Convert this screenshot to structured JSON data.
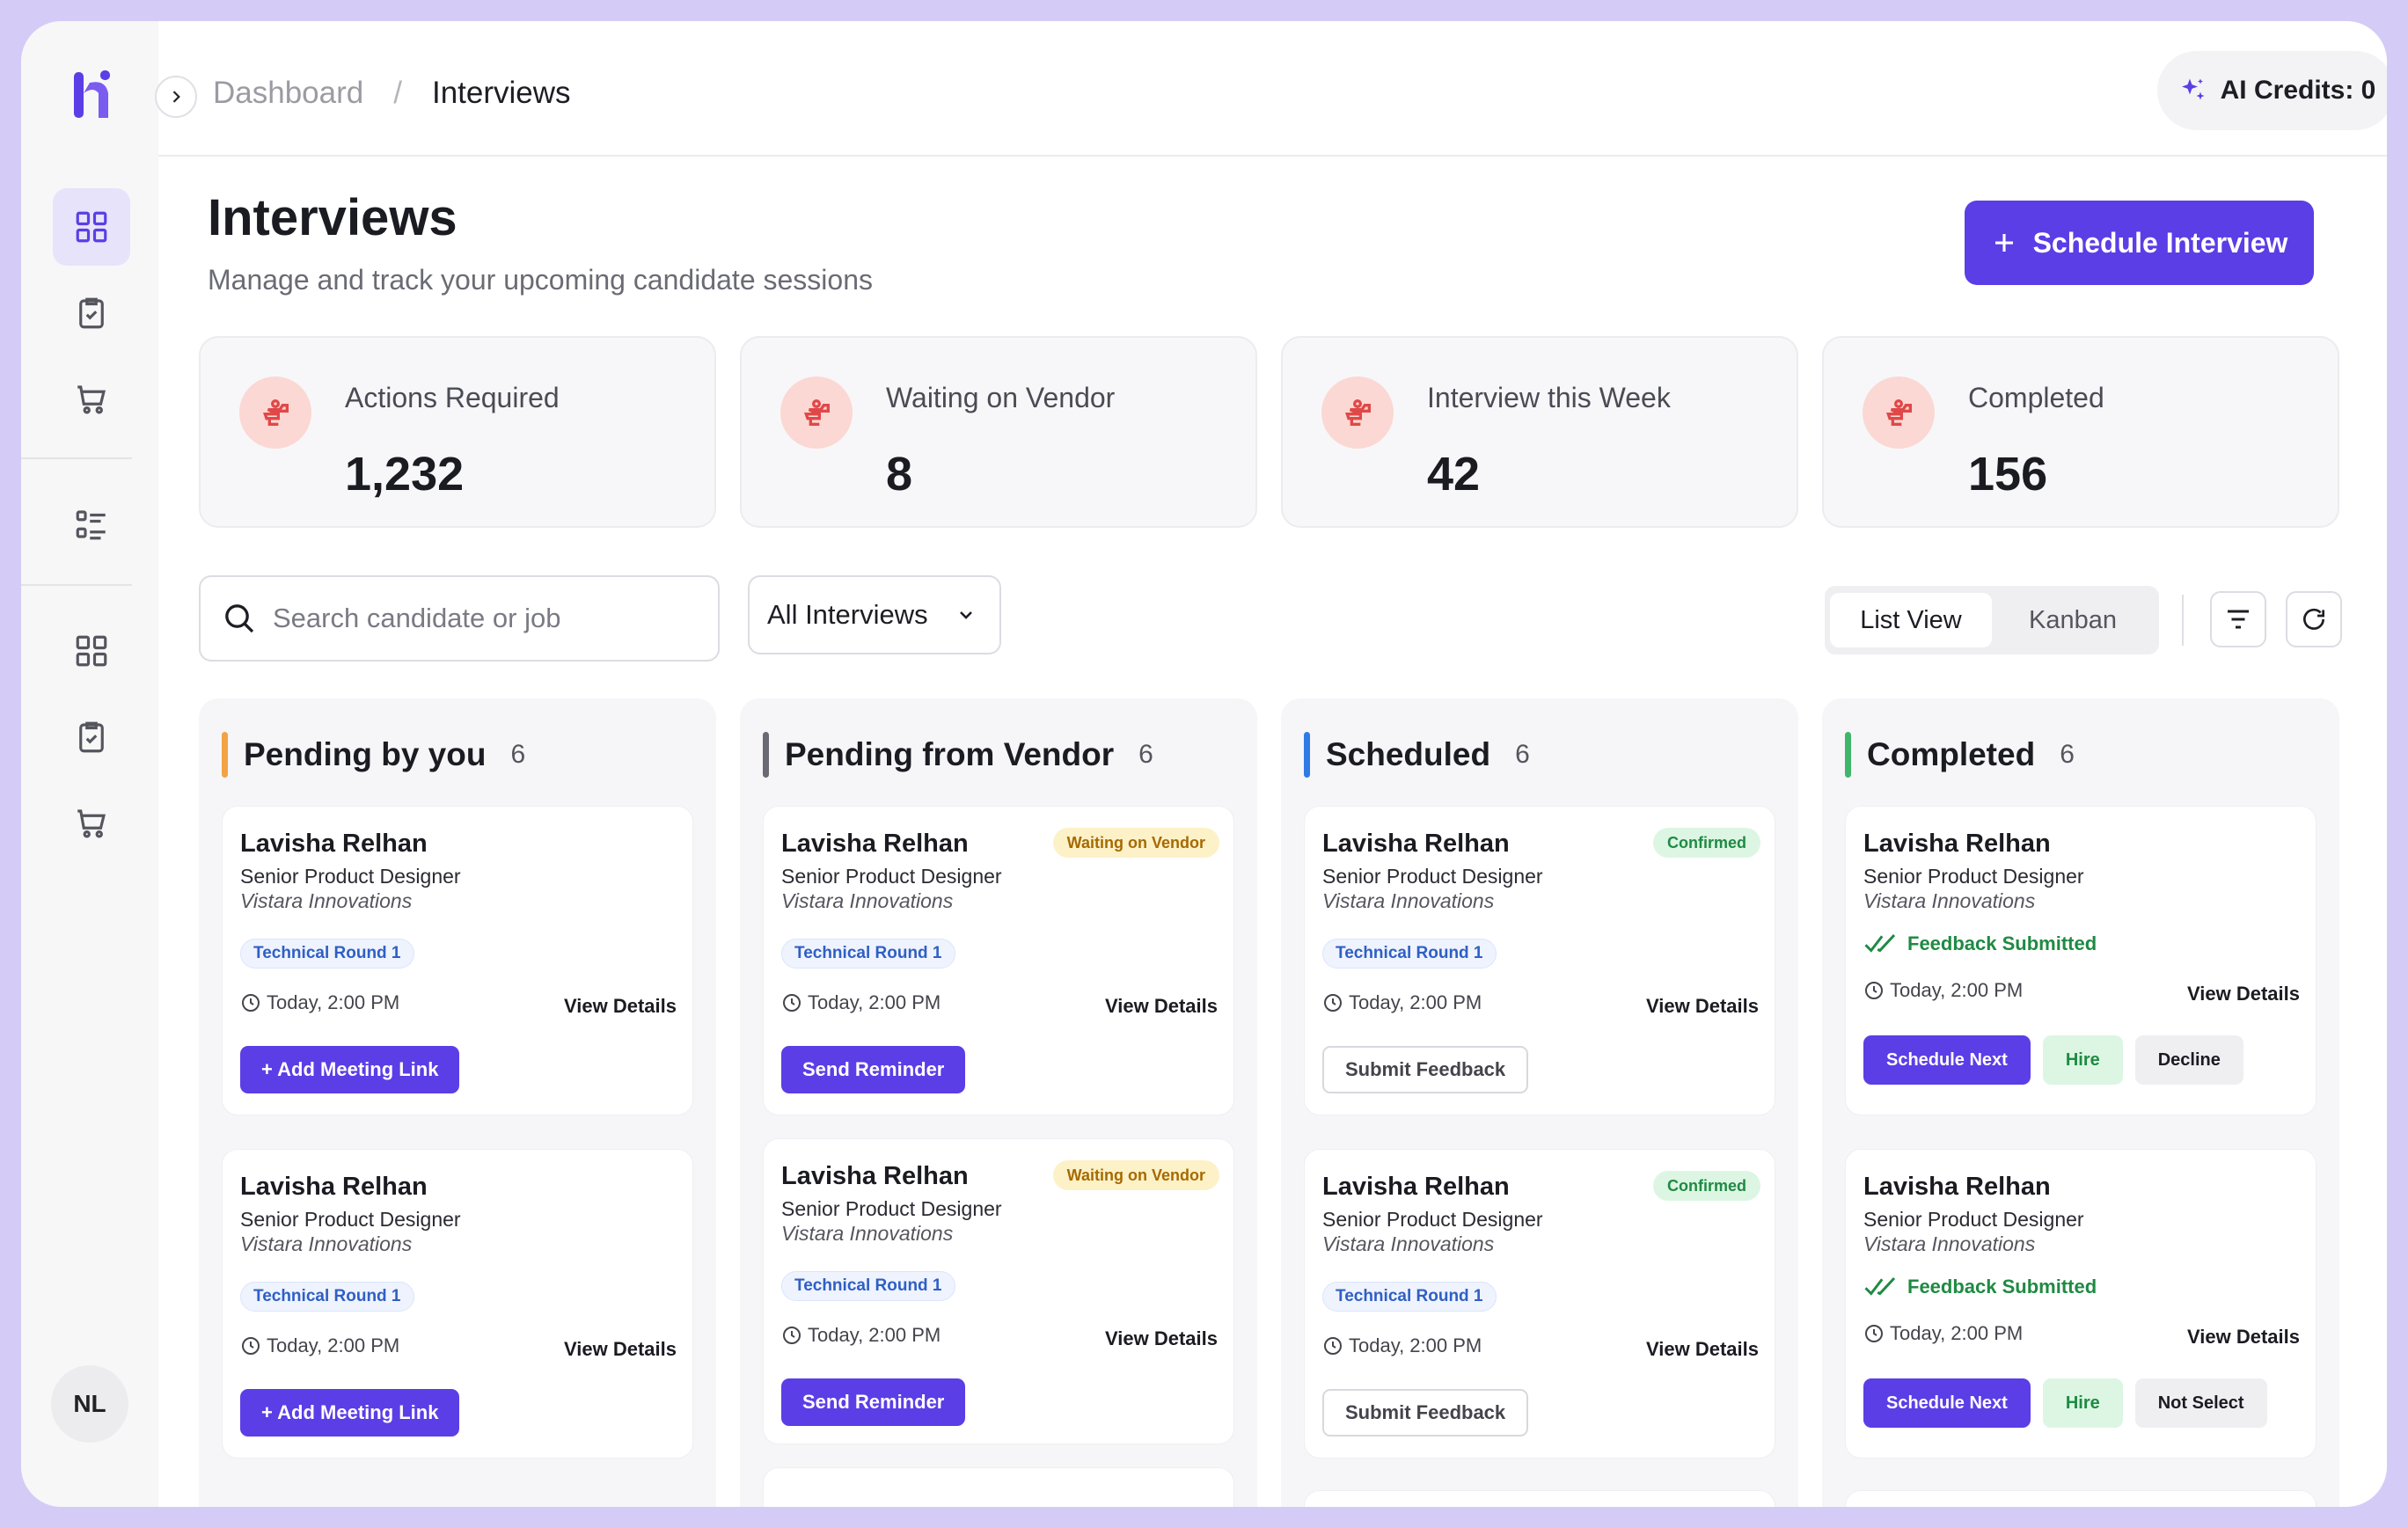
{
  "breadcrumb": {
    "parent": "Dashboard",
    "separator": "/",
    "current": "Interviews"
  },
  "header": {
    "credits_label": "AI Credits: 0"
  },
  "user": {
    "initials": "NL"
  },
  "page": {
    "title": "Interviews",
    "subtitle": "Manage and track your upcoming candidate sessions",
    "primary_action": "Schedule Interview"
  },
  "stats": [
    {
      "label": "Actions Required",
      "value": "1,232"
    },
    {
      "label": "Waiting on Vendor",
      "value": "8"
    },
    {
      "label": "Interview this Week",
      "value": "42"
    },
    {
      "label": "Completed",
      "value": "156"
    }
  ],
  "toolbar": {
    "search_placeholder": "Search candidate or job",
    "filter_selected": "All Interviews",
    "views": [
      "List View",
      "Kanban"
    ],
    "active_view": "List View"
  },
  "colors": {
    "accent": "#5b3ee6",
    "pending_by_you": "#f2a445",
    "pending_from_vendor": "#6a6a74",
    "scheduled": "#2f7be5",
    "completed": "#3fb66b"
  },
  "columns": [
    {
      "title": "Pending by you",
      "count": "6",
      "cards": [
        {
          "name": "Lavisha Relhan",
          "role": "Senior Product Designer",
          "company": "Vistara Innovations",
          "round": "Technical Round 1",
          "time": "Today, 2:00 PM",
          "view": "View Details",
          "action": "+ Add Meeting Link"
        },
        {
          "name": "Lavisha Relhan",
          "role": "Senior Product Designer",
          "company": "Vistara Innovations",
          "round": "Technical Round 1",
          "time": "Today, 2:00 PM",
          "view": "View Details",
          "action": "+ Add Meeting Link"
        }
      ]
    },
    {
      "title": "Pending from Vendor",
      "count": "6",
      "cards": [
        {
          "name": "Lavisha Relhan",
          "role": "Senior Product Designer",
          "company": "Vistara Innovations",
          "badge": "Waiting on Vendor",
          "round": "Technical Round 1",
          "time": "Today, 2:00 PM",
          "view": "View Details",
          "action": "Send Reminder"
        },
        {
          "name": "Lavisha Relhan",
          "role": "Senior Product Designer",
          "company": "Vistara Innovations",
          "badge": "Waiting on Vendor",
          "round": "Technical Round 1",
          "time": "Today, 2:00 PM",
          "view": "View Details",
          "action": "Send Reminder"
        }
      ]
    },
    {
      "title": "Scheduled",
      "count": "6",
      "cards": [
        {
          "name": "Lavisha Relhan",
          "role": "Senior Product Designer",
          "company": "Vistara Innovations",
          "badge": "Confirmed",
          "round": "Technical Round 1",
          "time": "Today, 2:00 PM",
          "view": "View Details",
          "action": "Submit Feedback"
        },
        {
          "name": "Lavisha Relhan",
          "role": "Senior Product Designer",
          "company": "Vistara Innovations",
          "badge": "Confirmed",
          "round": "Technical Round 1",
          "time": "Today, 2:00 PM",
          "view": "View Details",
          "action": "Submit Feedback"
        }
      ]
    },
    {
      "title": "Completed",
      "count": "6",
      "cards": [
        {
          "name": "Lavisha Relhan",
          "role": "Senior Product Designer",
          "company": "Vistara Innovations",
          "status": "Feedback Submitted",
          "time": "Today, 2:00 PM",
          "view": "View Details",
          "buttons": [
            "Schedule Next",
            "Hire",
            "Decline"
          ]
        },
        {
          "name": "Lavisha Relhan",
          "role": "Senior Product Designer",
          "company": "Vistara Innovations",
          "status": "Feedback Submitted",
          "time": "Today, 2:00 PM",
          "view": "View Details",
          "buttons": [
            "Schedule Next",
            "Hire",
            "Not Select"
          ]
        }
      ]
    }
  ]
}
